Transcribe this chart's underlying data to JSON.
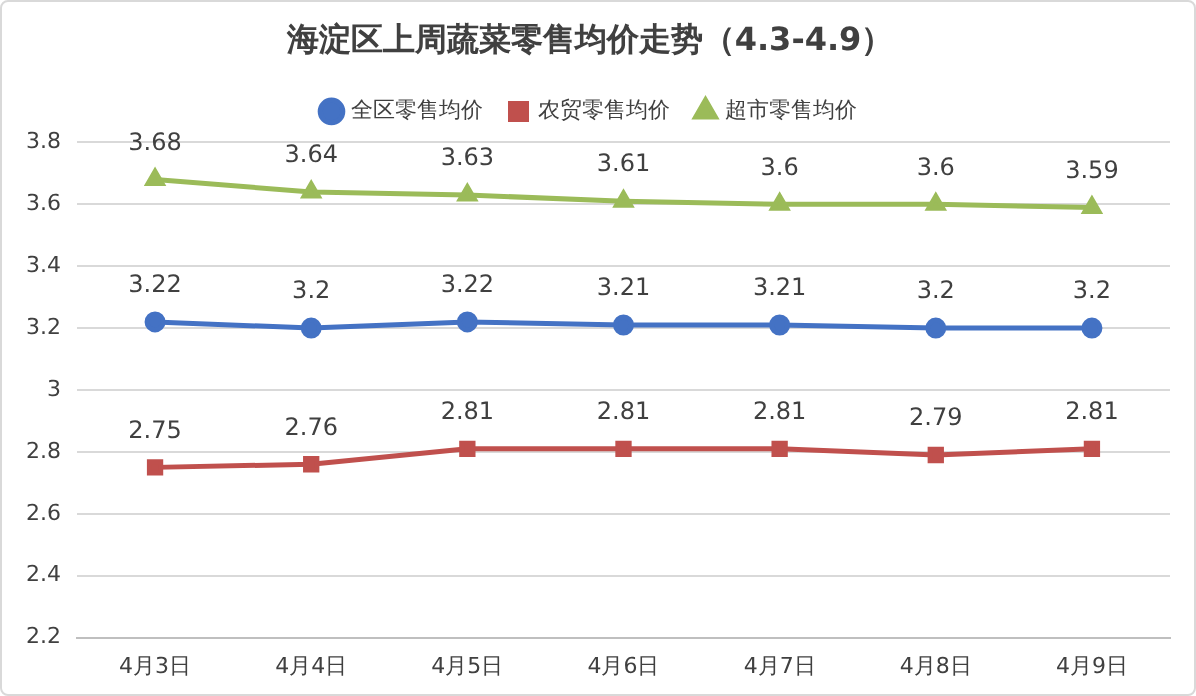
{
  "chart_data": {
    "type": "line",
    "title": "海淀区上周蔬菜零售均价走势（4.3-4.9）",
    "categories": [
      "4月3日",
      "4月4日",
      "4月5日",
      "4月6日",
      "4月7日",
      "4月8日",
      "4月9日"
    ],
    "series": [
      {
        "name": "全区零售均价",
        "color": "#4472c4",
        "marker": "circle",
        "values": [
          3.22,
          3.2,
          3.22,
          3.21,
          3.21,
          3.2,
          3.2
        ]
      },
      {
        "name": "农贸零售均价",
        "color": "#c0504d",
        "marker": "square",
        "values": [
          2.75,
          2.76,
          2.81,
          2.81,
          2.81,
          2.79,
          2.81
        ]
      },
      {
        "name": "超市零售均价",
        "color": "#9bbb59",
        "marker": "triangle",
        "values": [
          3.68,
          3.64,
          3.63,
          3.61,
          3.6,
          3.6,
          3.59
        ]
      }
    ],
    "ylim": [
      2.2,
      3.8
    ],
    "yticks": [
      2.2,
      2.4,
      2.6,
      2.8,
      3,
      3.2,
      3.4,
      3.6,
      3.8
    ],
    "grid": "y",
    "legend": "top",
    "data_labels": true,
    "line_style": "solid"
  }
}
